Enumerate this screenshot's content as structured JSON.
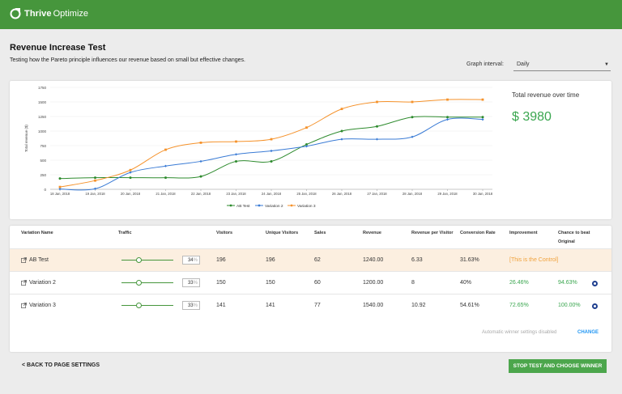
{
  "app": {
    "brand_bold": "Thrive",
    "brand_light": "Optimize"
  },
  "page": {
    "title": "Revenue Increase Test",
    "description": "Testing how the Pareto principle influences our revenue based on small but effective changes."
  },
  "interval": {
    "label": "Graph interval:",
    "value": "Daily"
  },
  "summary": {
    "label": "Total revenue over time",
    "value": "$ 3980"
  },
  "chart_data": {
    "type": "line",
    "ylabel": "Total revenue ($)",
    "ylim": [
      0,
      1750
    ],
    "yticks": [
      0,
      250,
      500,
      750,
      1000,
      1250,
      1500,
      1750
    ],
    "x": [
      "18 Jan, 2018",
      "19 Jan, 2018",
      "20 Jan, 2018",
      "21 Jan, 2018",
      "22 Jan, 2018",
      "23 Jan, 2018",
      "24 Jan, 2018",
      "25 Jan, 2018",
      "26 Jan, 2018",
      "27 Jan, 2018",
      "28 Jan, 2018",
      "29 Jan, 2018",
      "30 Jan, 2018"
    ],
    "series": [
      {
        "name": "AB Test",
        "color": "#2e8b2e",
        "values": [
          185,
          200,
          200,
          200,
          220,
          480,
          480,
          770,
          1000,
          1080,
          1240,
          1240,
          1240
        ]
      },
      {
        "name": "Variation 2",
        "color": "#3a7bd5",
        "values": [
          5,
          10,
          290,
          400,
          480,
          600,
          660,
          740,
          860,
          860,
          900,
          1200,
          1200
        ]
      },
      {
        "name": "Variation 3",
        "color": "#f5922b",
        "values": [
          40,
          150,
          330,
          680,
          800,
          820,
          860,
          1060,
          1380,
          1500,
          1500,
          1540,
          1540
        ]
      }
    ],
    "legend": "bottom",
    "grid": true
  },
  "table": {
    "headers": {
      "name": "Variation Name",
      "traffic": "Traffic",
      "visitors": "Visitors",
      "unique": "Unique Visitors",
      "sales": "Sales",
      "revenue": "Revenue",
      "rpv": "Revenue per Visitor",
      "conv": "Conversion Rate",
      "improvement": "Improvement",
      "chance": "Chance to beat",
      "chance2": "Original"
    },
    "rows": [
      {
        "name": "AB Test",
        "traffic": "34",
        "traffic_pct": 34,
        "visitors": "196",
        "unique": "196",
        "sales": "62",
        "revenue": "1240.00",
        "rpv": "6.33",
        "conv": "31.63%",
        "improvement": "[This is the Control]",
        "chance": ""
      },
      {
        "name": "Variation 2",
        "traffic": "33",
        "traffic_pct": 33,
        "visitors": "150",
        "unique": "150",
        "sales": "60",
        "revenue": "1200.00",
        "rpv": "8",
        "conv": "40%",
        "improvement": "26.46%",
        "chance": "94.63%"
      },
      {
        "name": "Variation 3",
        "traffic": "33",
        "traffic_pct": 33,
        "visitors": "141",
        "unique": "141",
        "sales": "77",
        "revenue": "1540.00",
        "rpv": "10.92",
        "conv": "54.61%",
        "improvement": "72.65%",
        "chance": "100.00%"
      }
    ],
    "pct_sign": "%",
    "auto_winner": "Automatic winner settings disabled",
    "change": "CHANGE"
  },
  "footer": {
    "back": "< BACK TO PAGE SETTINGS",
    "stop": "STOP TEST AND CHOOSE WINNER"
  }
}
